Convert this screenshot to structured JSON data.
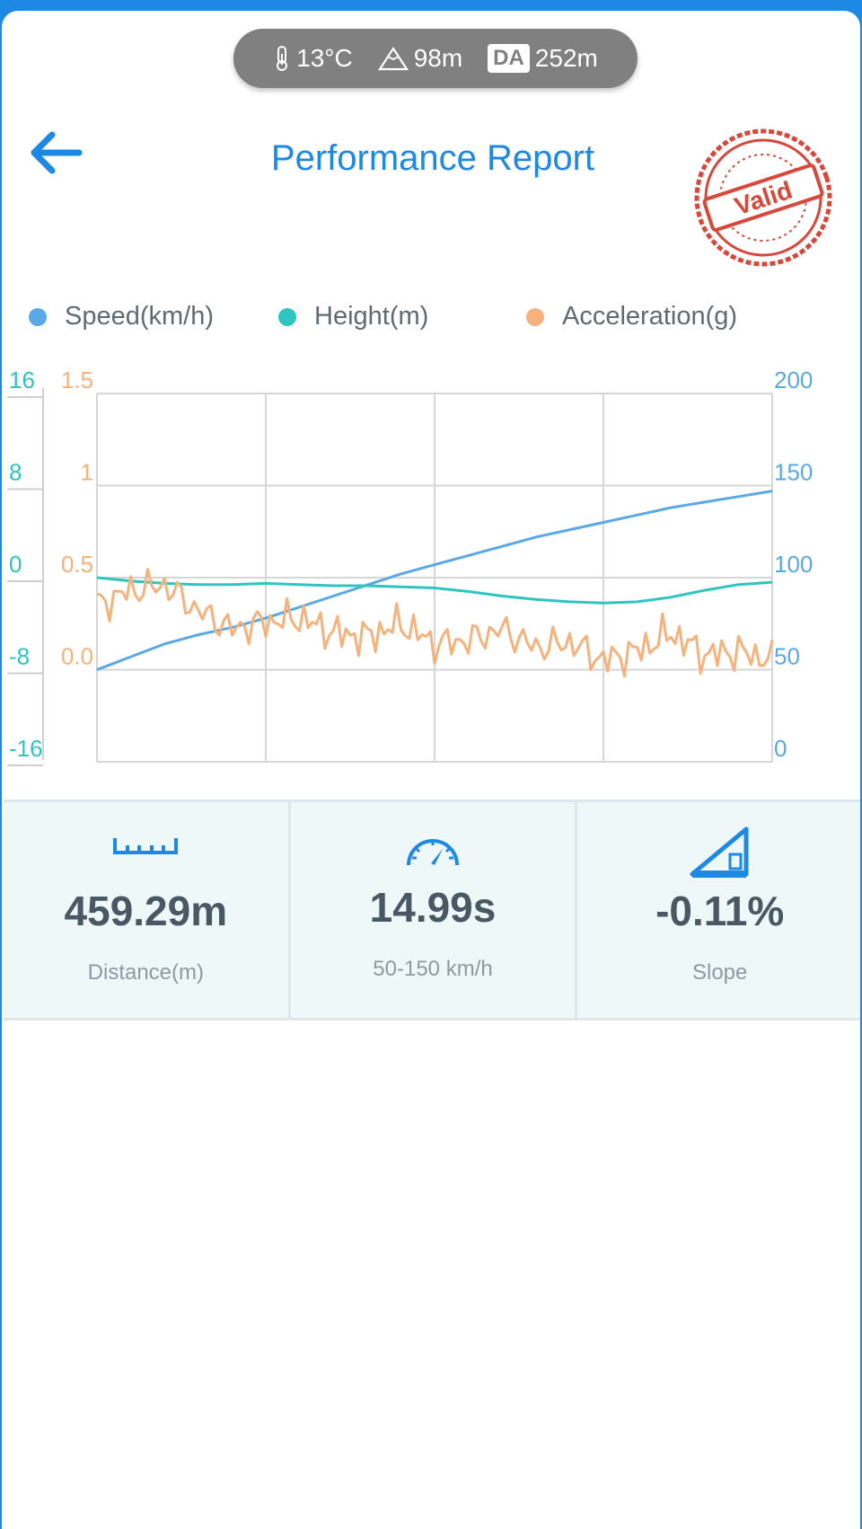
{
  "env": {
    "temperature": "13°C",
    "altitude": "98m",
    "da_label": "DA",
    "density_altitude": "252m",
    "icons": [
      "thermometer-icon",
      "mountain-icon",
      "density-altitude-icon"
    ]
  },
  "header": {
    "back_icon": "arrow-left-icon",
    "title": "Performance Report",
    "stamp_text": "Valid",
    "colors": {
      "accent": "#1e88e5",
      "stamp": "#d9473a"
    }
  },
  "legend": [
    {
      "label": "Speed(km/h)",
      "color": "#5aa9e6"
    },
    {
      "label": "Height(m)",
      "color": "#2ec4c0"
    },
    {
      "label": "Acceleration(g)",
      "color": "#f6b27d"
    }
  ],
  "chart_data": {
    "type": "line",
    "grid": true,
    "legend_placement": "top",
    "axes": {
      "height": {
        "side": "left-outer",
        "ticks": [
          "16",
          "8",
          "0",
          "-8",
          "-16"
        ],
        "range": [
          -16,
          16
        ],
        "color": "#2ec4c0"
      },
      "acceleration": {
        "side": "left-inner",
        "ticks": [
          "1.5",
          "1",
          "0.5",
          "0.0"
        ],
        "range": [
          -0.5,
          1.5
        ],
        "color": "#f6b27d"
      },
      "speed": {
        "side": "right",
        "ticks": [
          "200",
          "150",
          "100",
          "50",
          "0"
        ],
        "range": [
          0,
          200
        ],
        "color": "#5aa9e6"
      }
    },
    "x": [
      0,
      0.05,
      0.1,
      0.15,
      0.2,
      0.25,
      0.3,
      0.35,
      0.4,
      0.45,
      0.5,
      0.55,
      0.6,
      0.65,
      0.7,
      0.75,
      0.8,
      0.85,
      0.9,
      0.95,
      1.0
    ],
    "series": [
      {
        "name": "Speed(km/h)",
        "axis": "speed",
        "values": [
          50,
          57,
          64,
          69,
          73,
          78,
          84,
          90,
          96,
          102,
          107,
          112,
          117,
          122,
          126,
          130,
          134,
          138,
          141,
          144,
          147
        ]
      },
      {
        "name": "Height(m)",
        "axis": "height",
        "values": [
          0.0,
          -0.3,
          -0.5,
          -0.6,
          -0.6,
          -0.5,
          -0.6,
          -0.7,
          -0.7,
          -0.8,
          -0.9,
          -1.2,
          -1.6,
          -1.9,
          -2.1,
          -2.2,
          -2.1,
          -1.7,
          -1.1,
          -0.6,
          -0.4
        ]
      },
      {
        "name": "Acceleration(g)",
        "axis": "acceleration",
        "values": [
          0.35,
          0.43,
          0.46,
          0.32,
          0.22,
          0.26,
          0.28,
          0.2,
          0.18,
          0.25,
          0.14,
          0.16,
          0.22,
          0.12,
          0.15,
          0.05,
          0.1,
          0.2,
          0.08,
          0.1,
          0.05
        ]
      }
    ]
  },
  "stats": [
    {
      "icon": "ruler-icon",
      "value": "459.29m",
      "label": "Distance(m)"
    },
    {
      "icon": "speedometer-icon",
      "value": "14.99s",
      "label": "50-150 km/h"
    },
    {
      "icon": "slope-icon",
      "value": "-0.11%",
      "label": "Slope"
    }
  ]
}
